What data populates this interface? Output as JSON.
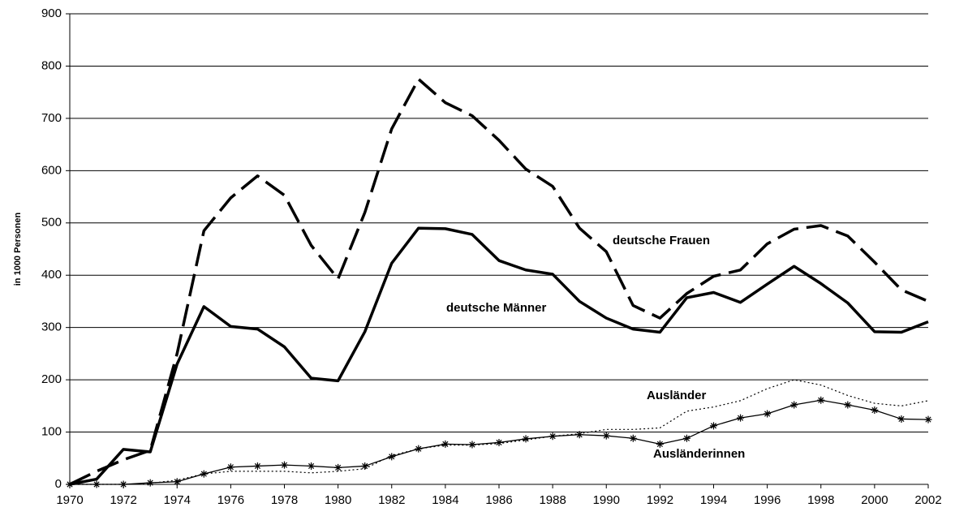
{
  "chart_data": {
    "type": "line",
    "y_label": "in 1000 Personen",
    "x": [
      1970,
      1971,
      1972,
      1973,
      1974,
      1975,
      1976,
      1977,
      1978,
      1979,
      1980,
      1981,
      1982,
      1983,
      1984,
      1985,
      1986,
      1987,
      1988,
      1989,
      1990,
      1991,
      1992,
      1993,
      1994,
      1995,
      1996,
      1997,
      1998,
      1999,
      2000,
      2001,
      2002
    ],
    "xlim": [
      1970,
      2002
    ],
    "xticks": [
      1970,
      1972,
      1974,
      1976,
      1978,
      1980,
      1982,
      1984,
      1986,
      1988,
      1990,
      1992,
      1994,
      1996,
      1998,
      2000,
      2002
    ],
    "ylim": [
      0,
      900
    ],
    "yticks": [
      0,
      100,
      200,
      300,
      400,
      500,
      600,
      700,
      800,
      900
    ],
    "grid": true,
    "series": [
      {
        "name": "deutsche Frauen",
        "color": "#000000",
        "line_style": "dashed",
        "values": [
          0,
          25,
          47,
          65,
          250,
          485,
          548,
          590,
          553,
          457,
          393,
          520,
          680,
          775,
          730,
          705,
          658,
          603,
          570,
          490,
          445,
          342,
          318,
          365,
          398,
          410,
          460,
          488,
          495,
          475,
          425,
          372,
          350
        ]
      },
      {
        "name": "deutsche Männer",
        "color": "#000000",
        "line_style": "solid",
        "values": [
          0,
          10,
          67,
          62,
          230,
          340,
          302,
          297,
          263,
          203,
          198,
          292,
          423,
          490,
          489,
          478,
          428,
          410,
          402,
          350,
          318,
          297,
          291,
          357,
          367,
          348,
          383,
          417,
          384,
          347,
          292,
          291,
          311
        ]
      },
      {
        "name": "Ausländer",
        "color": "#000000",
        "line_style": "dotted",
        "values": [
          0,
          0,
          0,
          2,
          8,
          20,
          25,
          25,
          25,
          22,
          25,
          30,
          55,
          68,
          75,
          75,
          78,
          85,
          92,
          97,
          105,
          105,
          108,
          140,
          148,
          160,
          183,
          200,
          190,
          170,
          155,
          150,
          160
        ]
      },
      {
        "name": "Ausländerinnen",
        "color": "#000000",
        "line_style": "thin",
        "marker": "star",
        "values": [
          0,
          0,
          0,
          3,
          5,
          20,
          33,
          35,
          37,
          35,
          32,
          35,
          53,
          68,
          77,
          76,
          80,
          87,
          92,
          95,
          93,
          88,
          77,
          88,
          112,
          127,
          135,
          152,
          161,
          152,
          142,
          125,
          124
        ]
      }
    ]
  }
}
